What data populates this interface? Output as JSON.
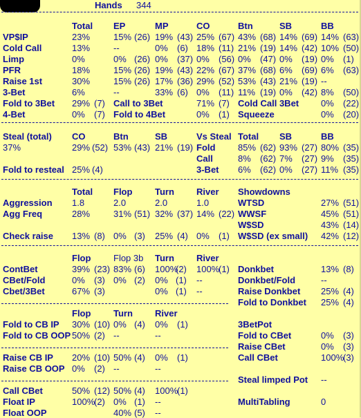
{
  "header": {
    "hands_label": "Hands",
    "hands_value": "344"
  },
  "table1": {
    "cols": [
      "Total",
      "EP",
      "MP",
      "CO",
      "Btn",
      "SB",
      "BB"
    ],
    "rows": [
      {
        "label": "VP$IP",
        "vals": [
          "23%",
          "15%",
          "(26)",
          "19%",
          "(43)",
          "25%",
          "(67)",
          "43%",
          "(68)",
          "14%",
          "(69)",
          "14%",
          "(63)"
        ]
      },
      {
        "label": "Cold Call",
        "vals": [
          "13%",
          "--",
          "",
          "0%",
          "(6)",
          "18%",
          "(11)",
          "21%",
          "(19)",
          "14%",
          "(42)",
          "10%",
          "(50)"
        ]
      },
      {
        "label": "Limp",
        "vals": [
          "0%",
          "0%",
          "(26)",
          "0%",
          "(37)",
          "0%",
          "(56)",
          "0%",
          "(47)",
          "0%",
          "(19)",
          "0%",
          "(1)"
        ]
      },
      {
        "label": "PFR",
        "vals": [
          "18%",
          "15%",
          "(26)",
          "19%",
          "(43)",
          "22%",
          "(67)",
          "37%",
          "(68)",
          "6%",
          "(69)",
          "6%",
          "(63)"
        ]
      },
      {
        "label": "Raise 1st",
        "vals": [
          "30%",
          "15%",
          "(26)",
          "17%",
          "(36)",
          "29%",
          "(52)",
          "53%",
          "(43)",
          "21%",
          "(19)",
          "--",
          ""
        ]
      },
      {
        "label": "3-Bet",
        "vals": [
          "6%",
          "--",
          "",
          "33%",
          "(6)",
          "0%",
          "(11)",
          "11%",
          "(19)",
          "0%",
          "(42)",
          "8%",
          "(50)"
        ]
      }
    ],
    "extra": [
      {
        "a_label": "Fold to 3Bet",
        "a_val": "29%",
        "a_cnt": "(7)",
        "b_label": "Call to 3Bet",
        "b_val": "71%",
        "b_cnt": "(7)",
        "c_label": "Cold Call 3Bet",
        "c_val": "0%",
        "c_cnt": "(22)"
      },
      {
        "a_label": "4-Bet",
        "a_val": "0%",
        "a_cnt": "(7)",
        "b_label": "Fold to 4Bet",
        "b_val": "0%",
        "b_cnt": "(1)",
        "c_label": "Squeeze",
        "c_val": "0%",
        "c_cnt": "(20)"
      }
    ]
  },
  "steal": {
    "h": {
      "total": "Steal (total)",
      "co": "CO",
      "btn": "Btn",
      "sb": "SB",
      "vs": "Vs Steal",
      "total2": "Total",
      "sb2": "SB",
      "bb2": "BB"
    },
    "total_val": "37%",
    "co": "29%",
    "co_c": "(52)",
    "btn": "53%",
    "btn_c": "(43)",
    "sb": "21%",
    "sb_c": "(19)",
    "defense": [
      {
        "label": "Fold",
        "vals": [
          "85%",
          "(62)",
          "93%",
          "(27)",
          "80%",
          "(35)"
        ]
      },
      {
        "label": "Call",
        "vals": [
          "8%",
          "(62)",
          "7%",
          "(27)",
          "9%",
          "(35)"
        ]
      },
      {
        "label": "3-Bet",
        "vals": [
          "6%",
          "(62)",
          "0%",
          "(27)",
          "11%",
          "(35)"
        ]
      }
    ],
    "resteal_label": "Fold to resteal",
    "resteal_val": "25%",
    "resteal_cnt": "(4)"
  },
  "aggr": {
    "h": {
      "total": "Total",
      "flop": "Flop",
      "turn": "Turn",
      "river": "River",
      "sd": "Showdowns"
    },
    "rows": [
      {
        "label": "Aggression",
        "total": "1.8",
        "flop": "2.0",
        "flop_c": "",
        "turn": "2.0",
        "turn_c": "",
        "river": "1.0",
        "river_c": "",
        "sd_label": "WTSD",
        "sd_val": "27%",
        "sd_cnt": "(51)"
      },
      {
        "label": "Agg Freq",
        "total": "28%",
        "flop": "31%",
        "flop_c": "(51)",
        "turn": "32%",
        "turn_c": "(37)",
        "river": "14%",
        "river_c": "(22)",
        "sd_label": "WWSF",
        "sd_val": "45%",
        "sd_cnt": "(51)"
      },
      {
        "label": "",
        "total": "",
        "flop": "",
        "flop_c": "",
        "turn": "",
        "turn_c": "",
        "river": "",
        "river_c": "",
        "sd_label": "W$SD",
        "sd_val": "43%",
        "sd_cnt": "(14)"
      },
      {
        "label": "Check raise",
        "total": "13%",
        "total_c": "(8)",
        "flop": "0%",
        "flop_c": "(3)",
        "turn": "25%",
        "turn_c": "(4)",
        "river": "0%",
        "river_c": "(1)",
        "sd_label": "W$SD (ex small)",
        "sd_val": "42%",
        "sd_cnt": "(12)"
      }
    ]
  },
  "cbet": {
    "h": {
      "flop": "Flop",
      "flop3b": "Flop 3b",
      "turn": "Turn",
      "river": "River"
    },
    "rows": [
      {
        "label": "ContBet",
        "v": [
          "39%",
          "(23)",
          "83%",
          "(6)",
          "100%",
          "(2)",
          "100%",
          "(1)"
        ],
        "r_label": "Donkbet",
        "r_val": "13%",
        "r_cnt": "(8)"
      },
      {
        "label": "CBet/Fold",
        "v": [
          "0%",
          "(3)",
          "0%",
          "(2)",
          "0%",
          "(1)",
          "--",
          ""
        ],
        "r_label": "Donkbet/Fold",
        "r_val": "--",
        "r_cnt": ""
      },
      {
        "label": "Cbet/3Bet",
        "v": [
          "67%",
          "(3)",
          "",
          "",
          "0%",
          "(1)",
          "--",
          ""
        ],
        "r_label": "Raise Donkbet",
        "r_val": "25%",
        "r_cnt": "(4)"
      },
      {
        "label": "",
        "v": [
          "",
          "",
          "",
          "",
          "",
          "",
          "",
          ""
        ],
        "r_label": "Fold to Donkbet",
        "r_val": "25%",
        "r_cnt": "(4)"
      }
    ]
  },
  "facing": {
    "h": {
      "flop": "Flop",
      "turn": "Turn",
      "river": "River"
    },
    "rows": [
      {
        "label": "Fold to CB IP",
        "v": [
          "30%",
          "(10)",
          "0%",
          "(4)",
          "0%",
          "(1)"
        ]
      },
      {
        "label": "Fold to CB OOP",
        "v": [
          "50%",
          "(2)",
          "--",
          "",
          "--",
          ""
        ]
      },
      {
        "label": "Raise CB IP",
        "v": [
          "20%",
          "(10)",
          "50%",
          "(4)",
          "0%",
          "(1)"
        ]
      },
      {
        "label": "Raise CB OOP",
        "v": [
          "0%",
          "(2)",
          "--",
          "",
          "--",
          ""
        ]
      },
      {
        "label": "Call CBet",
        "v": [
          "50%",
          "(12)",
          "50%",
          "(4)",
          "100%",
          "(1)"
        ]
      },
      {
        "label": "Float IP",
        "v": [
          "100%",
          "(2)",
          "0%",
          "(1)",
          "--",
          ""
        ]
      },
      {
        "label": "Float OOP",
        "v": [
          "",
          "",
          "40%",
          "(5)",
          "--",
          ""
        ]
      }
    ],
    "pot3b": {
      "title": "3BetPot",
      "rows": [
        {
          "label": "Fold to CBet",
          "val": "0%",
          "cnt": "(3)"
        },
        {
          "label": "Raise CBet",
          "val": "0%",
          "cnt": "(3)"
        },
        {
          "label": "Call CBet",
          "val": "100%",
          "cnt": "(3)"
        }
      ]
    },
    "steal_limped": {
      "label": "Steal limped Pot",
      "val": "--"
    },
    "multitabling": {
      "label": "MultiTabling",
      "val": "0"
    }
  },
  "colors": {
    "background": "#ffffa6",
    "text": "#10109c"
  }
}
